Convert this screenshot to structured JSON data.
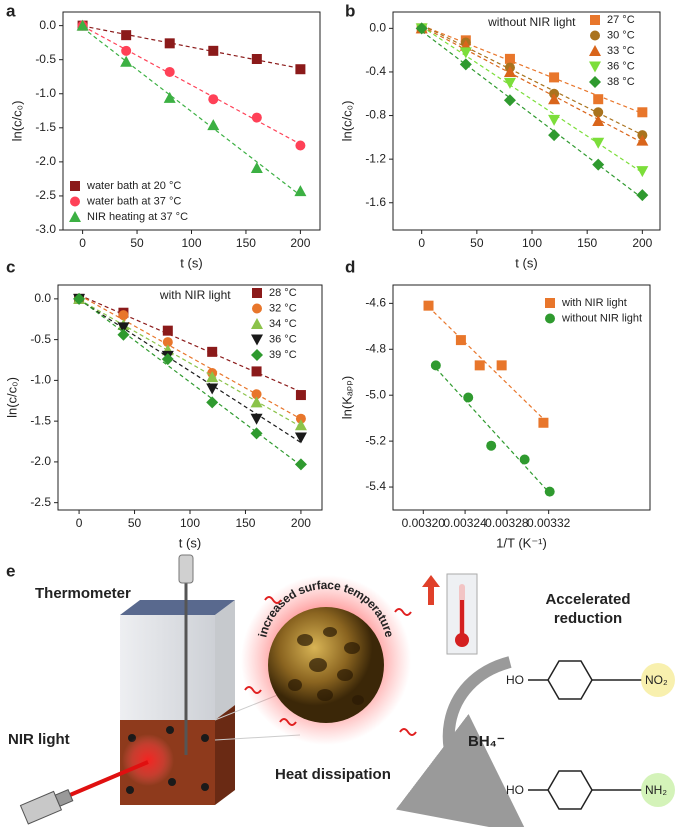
{
  "chart_data": [
    {
      "type": "scatter",
      "label": "a",
      "x_label": "t (s)",
      "y_label": "ln(c/c₀)",
      "legend": "lower left",
      "x": [
        0,
        40,
        80,
        120,
        160,
        200
      ],
      "xlim": [
        -18,
        218
      ],
      "xticks": [
        0,
        50,
        100,
        150,
        200
      ],
      "ylim": [
        -3.0,
        0.2
      ],
      "yticks": [
        {
          "value": 0,
          "label": "0.0"
        },
        {
          "value": -0.5,
          "label": "-0.5"
        },
        {
          "value": -1.0,
          "label": "-1.0"
        },
        {
          "value": -1.5,
          "label": "-1.5"
        },
        {
          "value": -2.0,
          "label": "-2.0"
        },
        {
          "value": -2.5,
          "label": "-2.5"
        },
        {
          "value": -3.0,
          "label": "-3.0"
        }
      ],
      "series": [
        {
          "name": "water bath at 20 °C",
          "color": "#8b1a1a",
          "marker": "square",
          "values": [
            0,
            -0.14,
            -0.26,
            -0.37,
            -0.49,
            -0.64
          ]
        },
        {
          "name": "water bath at 37 °C",
          "color": "#ff4157",
          "marker": "circle",
          "values": [
            0,
            -0.37,
            -0.68,
            -1.08,
            -1.35,
            -1.76
          ]
        },
        {
          "name": "NIR  heating at 37 °C",
          "color": "#3cb043",
          "marker": "triangle",
          "values": [
            0,
            -0.53,
            -1.06,
            -1.46,
            -2.09,
            -2.43
          ]
        }
      ]
    },
    {
      "type": "scatter",
      "label": "b",
      "x_label": "t (s)",
      "y_label": "ln(c/c₀)",
      "legend": "upper right",
      "annotation": "without NIR light",
      "x": [
        0,
        40,
        80,
        120,
        160,
        200
      ],
      "xlim": [
        -26,
        216
      ],
      "xticks": [
        0,
        50,
        100,
        150,
        200
      ],
      "ylim": [
        -1.85,
        0.15
      ],
      "yticks": [
        {
          "value": 0,
          "label": "0.0"
        },
        {
          "value": -0.4,
          "label": "-0.4"
        },
        {
          "value": -0.8,
          "label": "-0.8"
        },
        {
          "value": -1.2,
          "label": "-1.2"
        },
        {
          "value": -1.6,
          "label": "-1.6"
        }
      ],
      "series": [
        {
          "name": "27 °C",
          "color": "#e8762b",
          "marker": "square",
          "values": [
            0,
            -0.11,
            -0.28,
            -0.45,
            -0.65,
            -0.77
          ]
        },
        {
          "name": "30 °C",
          "color": "#a9731e",
          "marker": "circle",
          "values": [
            0,
            -0.13,
            -0.36,
            -0.6,
            -0.77,
            -0.98
          ]
        },
        {
          "name": "33 °C",
          "color": "#d9651b",
          "marker": "triangle",
          "values": [
            0,
            -0.16,
            -0.4,
            -0.65,
            -0.85,
            -1.03
          ]
        },
        {
          "name": "36 °C",
          "color": "#7cde3a",
          "marker": "triangle-down",
          "values": [
            0,
            -0.22,
            -0.5,
            -0.84,
            -1.05,
            -1.31
          ]
        },
        {
          "name": "38 °C",
          "color": "#2f9a2f",
          "marker": "diamond",
          "values": [
            0,
            -0.33,
            -0.66,
            -0.98,
            -1.25,
            -1.53
          ]
        }
      ]
    },
    {
      "type": "scatter",
      "label": "c",
      "x_label": "t (s)",
      "y_label": "ln(c/c₀)",
      "legend": "upper right",
      "annotation": "with NIR light",
      "x": [
        0,
        40,
        80,
        120,
        160,
        200
      ],
      "xlim": [
        -19,
        219
      ],
      "xticks": [
        0,
        50,
        100,
        150,
        200
      ],
      "ylim": [
        -2.59,
        0.17
      ],
      "yticks": [
        {
          "value": 0,
          "label": "0.0"
        },
        {
          "value": -0.5,
          "label": "-0.5"
        },
        {
          "value": -1.0,
          "label": "-1.0"
        },
        {
          "value": -1.5,
          "label": "-1.5"
        },
        {
          "value": -2.0,
          "label": "-2.0"
        },
        {
          "value": -2.5,
          "label": "-2.5"
        }
      ],
      "series": [
        {
          "name": "28 °C",
          "color": "#8b1a1a",
          "marker": "square",
          "values": [
            0,
            -0.17,
            -0.39,
            -0.65,
            -0.89,
            -1.18
          ]
        },
        {
          "name": "32 °C",
          "color": "#e8762b",
          "marker": "circle",
          "values": [
            0,
            -0.2,
            -0.53,
            -0.91,
            -1.17,
            -1.47
          ]
        },
        {
          "name": "34 °C",
          "color": "#8bc34a",
          "marker": "triangle",
          "values": [
            0,
            -0.32,
            -0.63,
            -0.96,
            -1.27,
            -1.55
          ]
        },
        {
          "name": "36 °C",
          "color": "#1a1a1a",
          "marker": "triangle-down",
          "values": [
            0,
            -0.35,
            -0.7,
            -1.1,
            -1.47,
            -1.7
          ]
        },
        {
          "name": "39 °C",
          "color": "#2f9a2f",
          "marker": "diamond",
          "values": [
            0,
            -0.44,
            -0.74,
            -1.27,
            -1.65,
            -2.03
          ]
        }
      ]
    },
    {
      "type": "scatter",
      "label": "d",
      "x_label": "1/T (K⁻¹)",
      "y_label": "ln(Kₐₚₚ)",
      "legend": "upper right",
      "xlim": [
        0.003171,
        0.003417
      ],
      "xticks": [
        {
          "value": 0.0032,
          "label": "0.00320"
        },
        {
          "value": 0.00324,
          "label": "0.00324"
        },
        {
          "value": 0.00328,
          "label": "0.00328"
        },
        {
          "value": 0.00332,
          "label": "0.00332"
        }
      ],
      "ylim": [
        -5.5,
        -4.52
      ],
      "yticks": [
        {
          "value": -4.6,
          "label": "-4.6"
        },
        {
          "value": -4.8,
          "label": "-4.8"
        },
        {
          "value": -5.0,
          "label": "-5.0"
        },
        {
          "value": -5.2,
          "label": "-5.2"
        },
        {
          "value": -5.4,
          "label": "-5.4"
        }
      ],
      "series": [
        {
          "name": "with NIR light",
          "color": "#e8762b",
          "marker": "square",
          "x": [
            0.003205,
            0.003236,
            0.003254,
            0.003275,
            0.003315
          ],
          "values": [
            -4.61,
            -4.76,
            -4.87,
            -4.87,
            -5.12
          ]
        },
        {
          "name": "without NIR light",
          "color": "#2f9a2f",
          "marker": "circle",
          "x": [
            0.003212,
            0.003243,
            0.003265,
            0.003297,
            0.003321
          ],
          "values": [
            -4.87,
            -5.01,
            -5.22,
            -5.28,
            -5.42
          ]
        }
      ]
    }
  ],
  "diagram": {
    "label": "e",
    "thermometer": "Thermometer",
    "nir_light": "NIR light",
    "surface": "increased surface temperature",
    "heat": "Heat dissipation",
    "result": [
      "Accelerated",
      "reduction"
    ],
    "reagent": "BH₄⁻",
    "reactant": {
      "left": "HO",
      "right": "NO₂"
    },
    "product": {
      "left": "HO",
      "right": "NH₂"
    }
  }
}
